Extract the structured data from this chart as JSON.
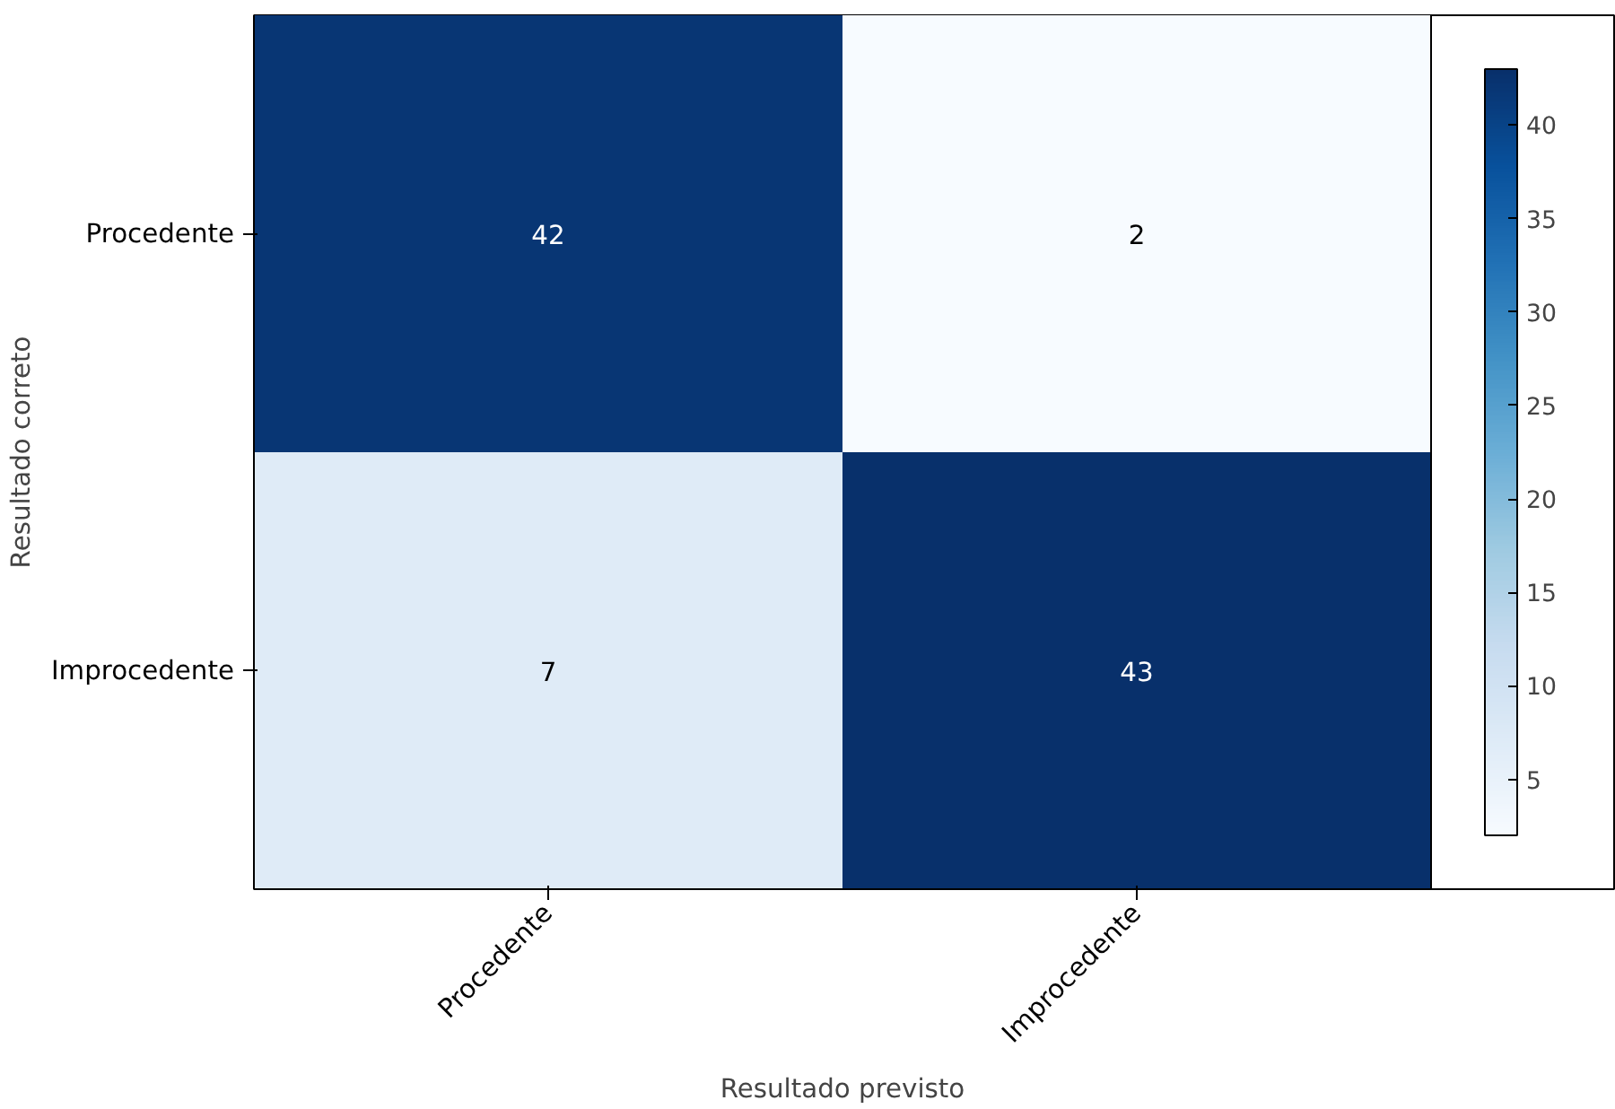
{
  "chart_data": {
    "type": "heatmap",
    "xlabel": "Resultado previsto",
    "ylabel": "Resultado correto",
    "categories": [
      "Procedente",
      "Improcedente"
    ],
    "y_categories": [
      "Procedente",
      "Improcedente"
    ],
    "cells": [
      [
        42,
        2
      ],
      [
        7,
        43
      ]
    ],
    "clim": [
      2,
      43
    ],
    "cticks": [
      5,
      10,
      15,
      20,
      25,
      30,
      35,
      40
    ],
    "data_labels": true
  }
}
